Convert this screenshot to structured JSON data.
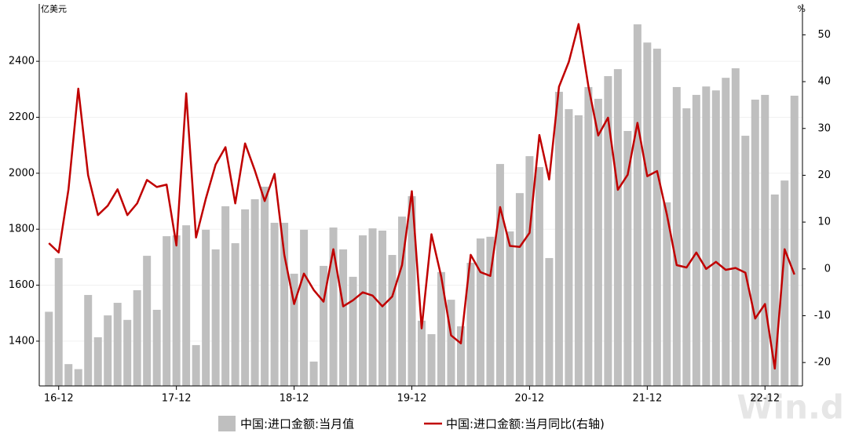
{
  "chart_data": {
    "type": "bar_line",
    "y_unit": "亿美元",
    "y2_unit": "%",
    "watermark": "Win.d",
    "categories": [
      null,
      "16-12",
      null,
      null,
      null,
      null,
      null,
      null,
      null,
      null,
      null,
      null,
      null,
      "17-12",
      null,
      null,
      null,
      null,
      null,
      null,
      null,
      null,
      null,
      null,
      null,
      "18-12",
      null,
      null,
      null,
      null,
      null,
      null,
      null,
      null,
      null,
      null,
      null,
      "19-12",
      null,
      null,
      null,
      null,
      null,
      null,
      null,
      null,
      null,
      null,
      null,
      "20-12",
      null,
      null,
      null,
      null,
      null,
      null,
      null,
      null,
      null,
      null,
      null,
      "21-12",
      null,
      null,
      null,
      null,
      null,
      null,
      null,
      null,
      null,
      null,
      null,
      "22-12",
      null,
      null,
      null
    ],
    "series": [
      {
        "name": "中国:进口金额:当月值",
        "color": "#bfbfbf",
        "kind": "bar",
        "axis": "y",
        "values": [
          1505,
          1697,
          1318,
          1300,
          1565,
          1414,
          1492,
          1537,
          1476,
          1582,
          1705,
          1512,
          1775,
          1778,
          1814,
          1386,
          1798,
          1728,
          1882,
          1750,
          1871,
          1907,
          1952,
          1823,
          1823,
          1641,
          1798,
          1327,
          1669,
          1806,
          1728,
          1630,
          1778,
          1803,
          1795,
          1708,
          1845,
          1918,
          1473,
          1425,
          1647,
          1548,
          1453,
          1680,
          1767,
          1773,
          2033,
          1792,
          1929,
          2061,
          2022,
          1697,
          2291,
          2229,
          2207,
          2308,
          2266,
          2347,
          2372,
          2151,
          2532,
          2467,
          2445,
          1896,
          2308,
          2232,
          2280,
          2310,
          2296,
          2341,
          2375,
          2134,
          2263,
          2280,
          1924,
          1974,
          2277
        ]
      },
      {
        "name": "中国:进口金额:当月同比(右轴)",
        "color": "#c00000",
        "kind": "line",
        "axis": "y2",
        "values": [
          5.5,
          3.5,
          17,
          38.5,
          20,
          11.5,
          13.5,
          17,
          11.5,
          14,
          19,
          17.5,
          18,
          5,
          37.5,
          6.7,
          15,
          22.3,
          26,
          14,
          26.8,
          21,
          14.5,
          20.3,
          3,
          -7.5,
          -1,
          -4.5,
          -7,
          4.2,
          -8,
          -6.7,
          -5,
          -5.7,
          -8,
          -5.9,
          0.8,
          16.6,
          -12.7,
          7.4,
          -1.7,
          -14.2,
          -15.9,
          3,
          -0.7,
          -1.5,
          13.2,
          4.9,
          4.7,
          7.7,
          28.6,
          19.1,
          38.9,
          44.2,
          52.3,
          39,
          28.5,
          32.3,
          16.9,
          20.1,
          31.2,
          19.8,
          20.9,
          11.6,
          0.8,
          0.3,
          3.5,
          0,
          1.5,
          -0.2,
          0.2,
          -0.8,
          -10.6,
          -7.5,
          -21.3,
          4.2,
          -1.2
        ]
      }
    ],
    "ylim": [
      1240,
      2605
    ],
    "yticks": [
      1400,
      1600,
      1800,
      2000,
      2200,
      2400
    ],
    "y2lim": [
      -25,
      56.6
    ],
    "y2ticks": [
      -20,
      -10,
      0,
      10,
      20,
      30,
      40,
      50
    ],
    "grid": true
  }
}
